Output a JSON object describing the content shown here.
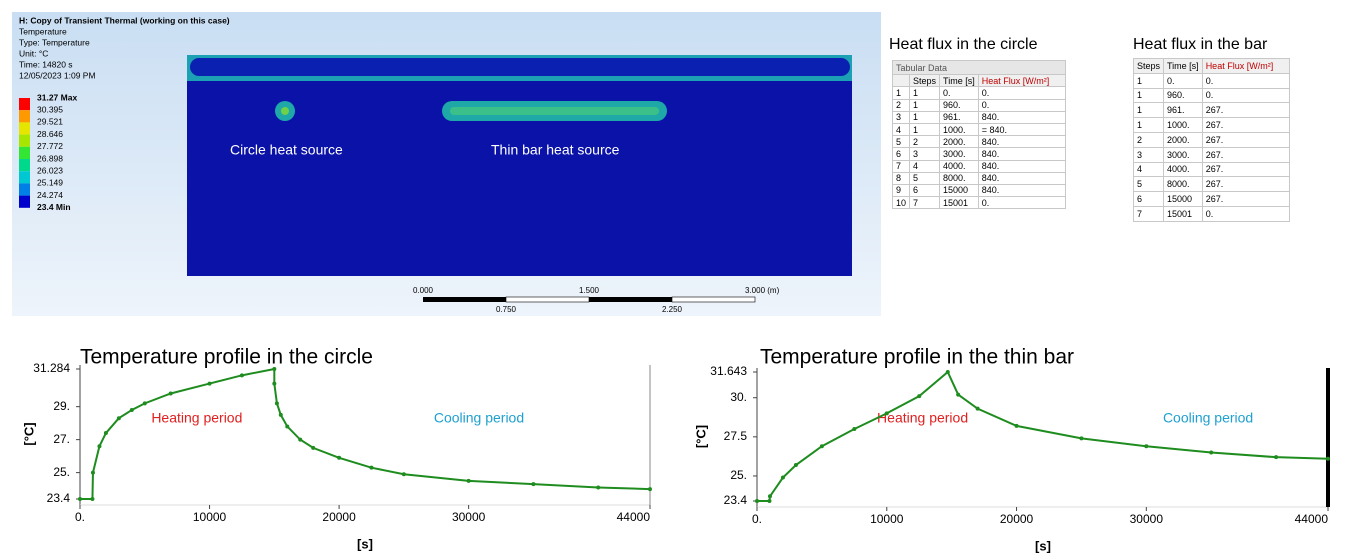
{
  "viewport": {
    "header": [
      "H: Copy of Transient Thermal (working on this case)",
      "Temperature",
      "Type: Temperature",
      "Unit: °C",
      "Time: 14820 s",
      "12/05/2023 1:09 PM"
    ],
    "legend": {
      "labels": [
        "31.27 Max",
        "30.395",
        "29.521",
        "28.646",
        "27.772",
        "26.898",
        "26.023",
        "25.149",
        "24.274",
        "23.4 Min"
      ],
      "colors": [
        "#ff0000",
        "#ff9900",
        "#e5e500",
        "#a6e600",
        "#33e633",
        "#00d98c",
        "#00c8d2",
        "#0080e6",
        "#0000cc"
      ]
    },
    "annotations": [
      "Circle heat source",
      "Thin bar heat source"
    ],
    "scale": {
      "top_labels": [
        "0.000",
        "1.500",
        "3.000 (m)"
      ],
      "bottom_labels": [
        "0.750",
        "2.250"
      ]
    }
  },
  "tables": [
    {
      "title": "Heat flux in the circle",
      "caption": "Tabular Data",
      "columns": [
        "Steps",
        "Time [s]",
        "Heat Flux [W/m²]"
      ],
      "rows": [
        [
          "1",
          "1",
          "0.",
          "0."
        ],
        [
          "2",
          "1",
          "960.",
          "0."
        ],
        [
          "3",
          "1",
          "961.",
          "840."
        ],
        [
          "4",
          "1",
          "1000.",
          "= 840."
        ],
        [
          "5",
          "2",
          "2000.",
          "840."
        ],
        [
          "6",
          "3",
          "3000.",
          "840."
        ],
        [
          "7",
          "4",
          "4000.",
          "840."
        ],
        [
          "8",
          "5",
          "8000.",
          "840."
        ],
        [
          "9",
          "6",
          "15000",
          "840."
        ],
        [
          "10",
          "7",
          "15001",
          "0."
        ]
      ]
    },
    {
      "title": "Heat flux in the bar",
      "columns": [
        "Steps",
        "Time [s]",
        "Heat Flux [W/m²]"
      ],
      "rows": [
        [
          "1",
          "0.",
          "0."
        ],
        [
          "1",
          "960.",
          "0."
        ],
        [
          "1",
          "961.",
          "267."
        ],
        [
          "1",
          "1000.",
          "267."
        ],
        [
          "2",
          "2000.",
          "267."
        ],
        [
          "3",
          "3000.",
          "267."
        ],
        [
          "4",
          "4000.",
          "267."
        ],
        [
          "5",
          "8000.",
          "267."
        ],
        [
          "6",
          "15000",
          "267."
        ],
        [
          "7",
          "15001",
          "0."
        ]
      ]
    }
  ],
  "charts": [
    {
      "type": "line",
      "title": "Temperature profile in the circle",
      "xlabel": "[s]",
      "ylabel": "[°C]",
      "color": "#1e8c1e",
      "x": [
        0,
        960,
        1000,
        1500,
        2000,
        3000,
        4000,
        5000,
        7000,
        10000,
        12500,
        15000,
        15001,
        15200,
        15500,
        16000,
        17000,
        18000,
        20000,
        22500,
        25000,
        30000,
        35000,
        40000,
        44000
      ],
      "y": [
        23.4,
        23.4,
        25.0,
        26.6,
        27.4,
        28.3,
        28.8,
        29.2,
        29.8,
        30.4,
        30.9,
        31.284,
        30.4,
        29.2,
        28.5,
        27.8,
        27.0,
        26.5,
        25.9,
        25.3,
        24.9,
        24.5,
        24.3,
        24.1,
        24.0
      ],
      "xlim": [
        0,
        44000
      ],
      "ylim": [
        23.4,
        31.284
      ],
      "xticks": [
        {
          "value": 0,
          "label": "0."
        },
        10000,
        20000,
        30000,
        44000
      ],
      "yticks": [
        23.4,
        {
          "value": 25,
          "label": "25."
        },
        {
          "value": 27,
          "label": "27."
        },
        {
          "value": 29,
          "label": "29."
        },
        31.284
      ],
      "annotations": [
        {
          "text": "Heating period",
          "color": "#e02020"
        },
        {
          "text": "Cooling period",
          "color": "#1ea0d0"
        }
      ]
    },
    {
      "type": "line",
      "title": "Temperature profile in the thin bar",
      "xlabel": "[s]",
      "ylabel": "[°C]",
      "color": "#1e8c1e",
      "x": [
        0,
        960,
        1000,
        2000,
        3000,
        5000,
        7500,
        10000,
        12500,
        14700,
        15500,
        17000,
        20000,
        25000,
        30000,
        35000,
        40000,
        44000
      ],
      "y": [
        23.4,
        23.4,
        23.7,
        24.9,
        25.7,
        26.9,
        28.0,
        29.0,
        30.1,
        31.643,
        30.2,
        29.3,
        28.2,
        27.4,
        26.9,
        26.5,
        26.2,
        26.1
      ],
      "xlim": [
        0,
        44000
      ],
      "ylim": [
        23.4,
        31.643
      ],
      "xticks": [
        {
          "value": 0,
          "label": "0."
        },
        10000,
        20000,
        30000,
        44000
      ],
      "yticks": [
        23.4,
        {
          "value": 25,
          "label": "25."
        },
        {
          "value": 27.5,
          "label": "27.5"
        },
        {
          "value": 30,
          "label": "30."
        },
        31.643
      ],
      "annotations": [
        {
          "text": "Heating period",
          "color": "#e02020"
        },
        {
          "text": "Cooling period",
          "color": "#1ea0d0"
        }
      ]
    }
  ]
}
